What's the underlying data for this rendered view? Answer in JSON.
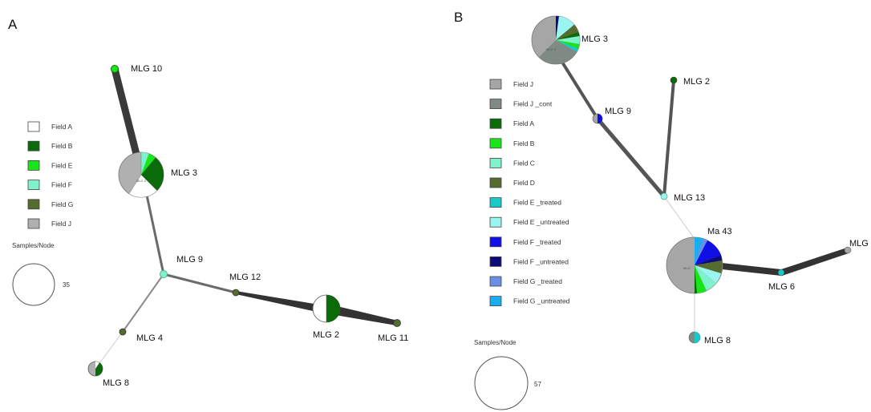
{
  "panel_a": {
    "label": "A",
    "legend": [
      {
        "label": "Field A",
        "color": "#ffffff"
      },
      {
        "label": "Field B",
        "color": "#0b6b0b"
      },
      {
        "label": "Field E",
        "color": "#19e619"
      },
      {
        "label": "Field F",
        "color": "#7ff2cc"
      },
      {
        "label": "Field G",
        "color": "#556b2f"
      },
      {
        "label": "Field J",
        "color": "#b0b0b0"
      }
    ],
    "size_legend": {
      "title": "Samples/Node",
      "value": "35"
    },
    "nodes": {
      "mlg10": "MLG 10",
      "mlg3": "MLG 3",
      "mlg9": "MLG 9",
      "mlg12": "MLG 12",
      "mlg4": "MLG 4",
      "mlg8": "MLG 8",
      "mlg2": "MLG 2",
      "mlg11": "MLG 11"
    },
    "pie_inner_label": "MLG 3"
  },
  "panel_b": {
    "label": "B",
    "legend": [
      {
        "label": "Field J",
        "color": "#a6a6a6"
      },
      {
        "label": "Field J _cont",
        "color": "#7f8a84"
      },
      {
        "label": "Field A",
        "color": "#0b6b0b"
      },
      {
        "label": "Field B",
        "color": "#19e619"
      },
      {
        "label": "Field C",
        "color": "#7ff2cc"
      },
      {
        "label": "Field D",
        "color": "#556b2f"
      },
      {
        "label": "Field E _treated",
        "color": "#17c9c9"
      },
      {
        "label": "Field E _untreated",
        "color": "#9af5f0"
      },
      {
        "label": "Field F _treated",
        "color": "#0f0fe6"
      },
      {
        "label": "Field F _untreated",
        "color": "#0a0a7a"
      },
      {
        "label": "Field G _treated",
        "color": "#6b8fe6"
      },
      {
        "label": "Field G _untreated",
        "color": "#1aaef0"
      }
    ],
    "size_legend": {
      "title": "Samples/Node",
      "value": "57"
    },
    "nodes": {
      "mlg3": "MLG 3",
      "mlg2": "MLG 2",
      "mlg9": "MLG 9",
      "mlg13": "MLG 13",
      "ma43": "Ma 43",
      "mlg_edge": "MLG",
      "mlg6": "MLG 6",
      "mlg8": "MLG 8"
    },
    "pie_inner_label": "MLG 3",
    "pie2_inner_label": "MLG"
  }
}
